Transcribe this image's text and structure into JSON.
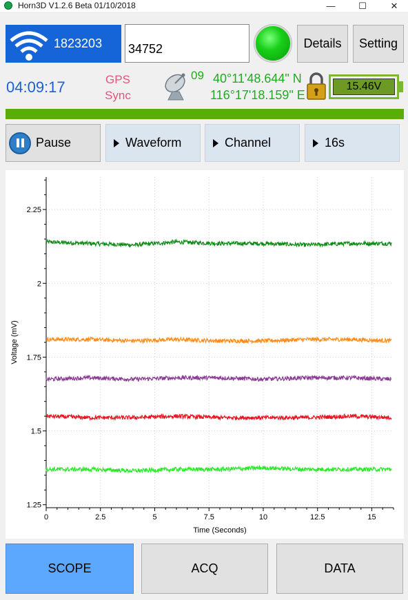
{
  "window": {
    "title": "Horn3D V1.2.6 Beta 01/10/2018",
    "minimize": "—",
    "maximize": "☐",
    "close": "✕"
  },
  "header": {
    "device_id": "1823203",
    "station_value": "34752",
    "status_color": "#18d018",
    "details_label": "Details",
    "setting_label": "Setting",
    "time": "04:09:17",
    "gps_line1": "GPS",
    "gps_line2": "Sync",
    "satellites": "09",
    "latitude": "40°11'48.644\" N",
    "longitude": "116°17'18.159\" E",
    "battery": "15.46V",
    "icons": [
      "wifi-icon",
      "satellite-dish-icon",
      "padlock-icon",
      "battery-icon"
    ]
  },
  "progress": {
    "value": 1.0,
    "color": "#5aac07"
  },
  "controls": {
    "pause_label": "Pause",
    "waveform_label": "Waveform",
    "channel_label": "Channel",
    "duration_label": "16s"
  },
  "chart_data": {
    "type": "line",
    "title": "",
    "xlabel": "Time (Seconds)",
    "ylabel": "Voltage (mV)",
    "xlim": [
      0,
      16
    ],
    "ylim": [
      1.24,
      2.36
    ],
    "x_ticks": [
      "0",
      "2.5",
      "5",
      "7.5",
      "10",
      "12.5",
      "15"
    ],
    "x_tick_values": [
      0,
      2.5,
      5,
      7.5,
      10,
      12.5,
      15
    ],
    "y_ticks": [
      "1.25",
      "1.5",
      "1.75",
      "2",
      "2.25"
    ],
    "y_tick_values": [
      1.25,
      1.5,
      1.75,
      2,
      2.25
    ],
    "grid": true,
    "series": [
      {
        "color": "#0e8a16",
        "x": [
          0,
          2,
          4,
          6,
          8,
          10,
          12,
          14,
          16
        ],
        "values": [
          2.14,
          2.135,
          2.13,
          2.14,
          2.135,
          2.135,
          2.13,
          2.135,
          2.135
        ]
      },
      {
        "color": "#ff8c1a",
        "x": [
          0,
          2,
          4,
          6,
          8,
          10,
          12,
          14,
          16
        ],
        "values": [
          1.81,
          1.81,
          1.805,
          1.81,
          1.805,
          1.805,
          1.81,
          1.81,
          1.805
        ]
      },
      {
        "color": "#8b3a96",
        "x": [
          0,
          2,
          4,
          6,
          8,
          10,
          12,
          14,
          16
        ],
        "values": [
          1.675,
          1.68,
          1.675,
          1.68,
          1.68,
          1.675,
          1.68,
          1.68,
          1.675
        ]
      },
      {
        "color": "#e8141e",
        "x": [
          0,
          2,
          4,
          6,
          8,
          10,
          12,
          14,
          16
        ],
        "values": [
          1.55,
          1.545,
          1.545,
          1.55,
          1.545,
          1.545,
          1.545,
          1.55,
          1.545
        ]
      },
      {
        "color": "#2ae82a",
        "x": [
          0,
          2,
          4,
          6,
          8,
          10,
          12,
          14,
          16
        ],
        "values": [
          1.37,
          1.37,
          1.365,
          1.37,
          1.37,
          1.375,
          1.37,
          1.37,
          1.37
        ]
      }
    ]
  },
  "nav": {
    "scope_label": "SCOPE",
    "acq_label": "ACQ",
    "data_label": "DATA"
  }
}
